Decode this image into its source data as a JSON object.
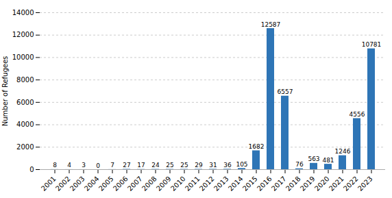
{
  "chart_data": {
    "type": "bar",
    "categories": [
      "2001",
      "2002",
      "2003",
      "2004",
      "2005",
      "2006",
      "2007",
      "2008",
      "2009",
      "2010",
      "2011",
      "2012",
      "2013",
      "2014",
      "2015",
      "2016",
      "2017",
      "2018",
      "2019",
      "2020",
      "2021",
      "2022",
      "2023"
    ],
    "values": [
      8,
      4,
      3,
      0,
      7,
      27,
      17,
      24,
      25,
      25,
      29,
      31,
      36,
      105,
      1682,
      12587,
      6557,
      76,
      563,
      481,
      1246,
      4556,
      10781
    ],
    "color": "#2E75B6",
    "ylabel": "Number of Refugees",
    "ylim": [
      0,
      14000
    ],
    "yticks": [
      0,
      2000,
      4000,
      6000,
      8000,
      10000,
      12000,
      14000
    ],
    "grid": true,
    "data_labels": true
  }
}
